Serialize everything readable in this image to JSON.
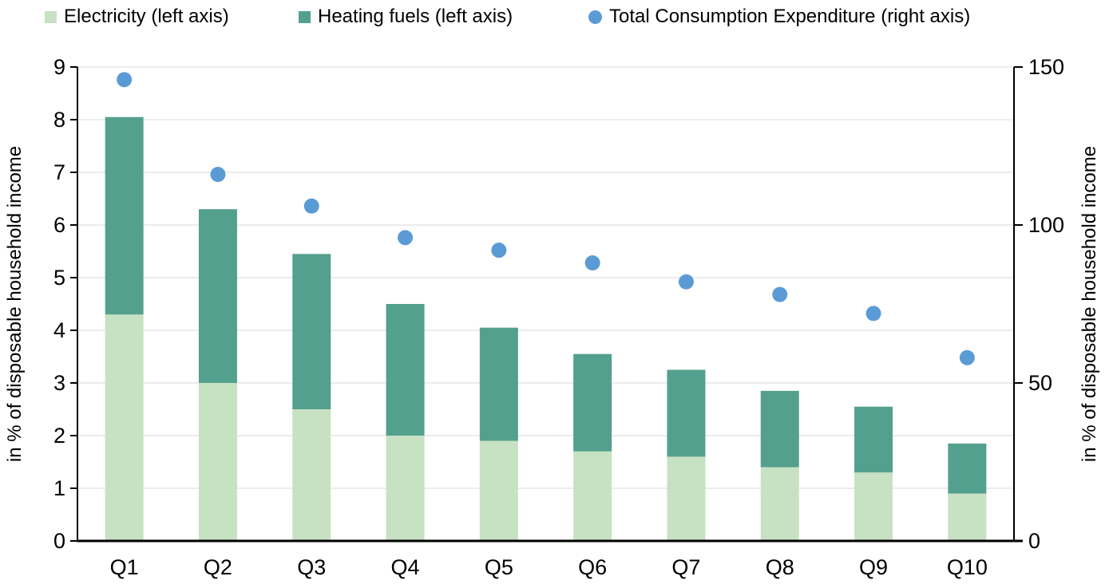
{
  "chart_data": {
    "type": "bar",
    "subtype": "stacked-bar-with-scatter-overlay",
    "title": "",
    "categories": [
      "Q1",
      "Q2",
      "Q3",
      "Q4",
      "Q5",
      "Q6",
      "Q7",
      "Q8",
      "Q9",
      "Q10"
    ],
    "series": [
      {
        "name": "Electricity (left axis)",
        "kind": "bar-stacked",
        "axis": "left",
        "color": "#C7E2C2",
        "values": [
          4.3,
          3.0,
          2.5,
          2.0,
          1.9,
          1.7,
          1.6,
          1.4,
          1.3,
          0.9
        ]
      },
      {
        "name": "Heating fuels (left axis)",
        "kind": "bar-stacked",
        "axis": "left",
        "color": "#54A08E",
        "values": [
          3.75,
          3.3,
          2.95,
          2.5,
          2.15,
          1.85,
          1.65,
          1.45,
          1.25,
          0.95
        ]
      },
      {
        "name": "Total Consumption Expenditure (right axis)",
        "kind": "scatter",
        "axis": "right",
        "color": "#5B9BD5",
        "values": [
          146,
          116,
          106,
          96,
          92,
          88,
          82,
          78,
          72,
          58
        ]
      }
    ],
    "left_axis": {
      "label": "in % of disposable household income",
      "min": 0,
      "max": 9,
      "tick_step": 1,
      "tick_labels": [
        "0",
        "1",
        "2",
        "3",
        "4",
        "5",
        "6",
        "7",
        "8",
        "9"
      ]
    },
    "right_axis": {
      "label": "in % of disposable household income",
      "min": 0,
      "max": 150,
      "tick_step": 50,
      "tick_labels": [
        "0",
        "50",
        "100",
        "150"
      ]
    },
    "grid": true,
    "legend_position": "top",
    "colors": {
      "grid": "#ECECEC",
      "axis": "#000000",
      "text": "#000000",
      "background": "#FFFFFF"
    }
  }
}
